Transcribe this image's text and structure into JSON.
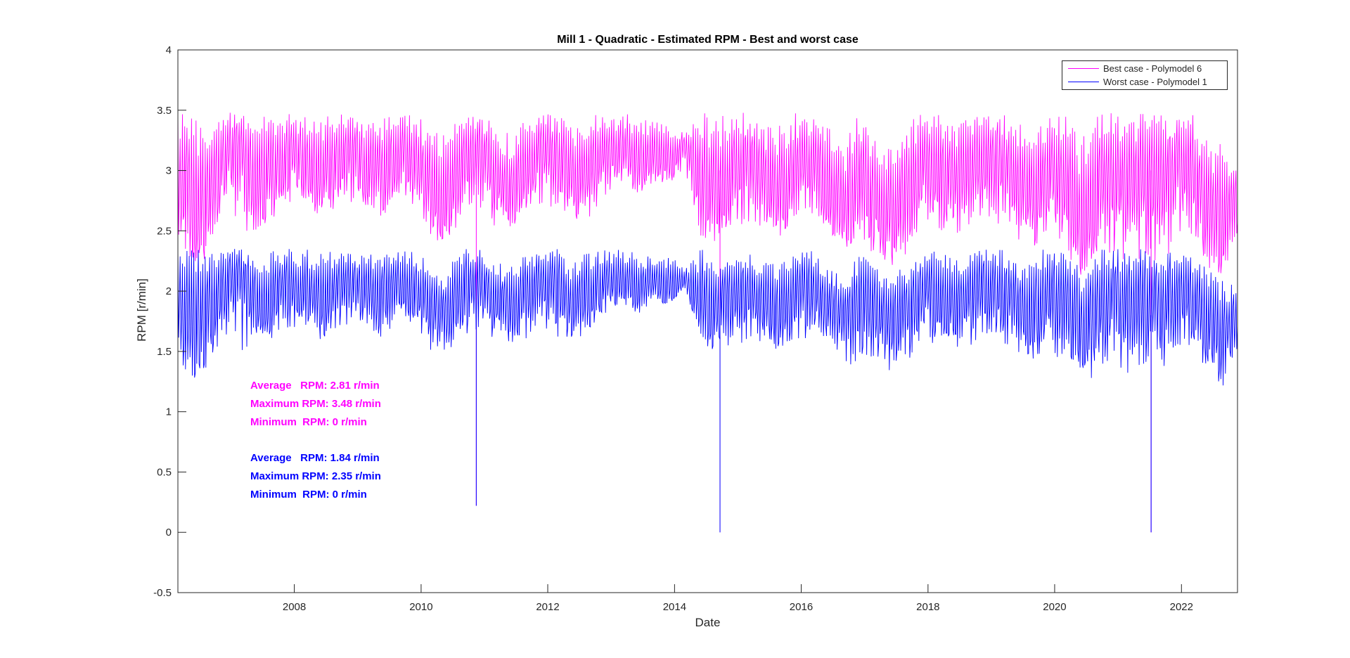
{
  "chart_data": {
    "type": "line",
    "title": "Mill 1 - Quadratic - Estimated RPM - Best and worst case",
    "xlabel": "Date",
    "ylabel": "RPM [r/min]",
    "xlim": [
      "2006-03-01",
      "2022-11-20"
    ],
    "ylim": [
      -0.5,
      4
    ],
    "xticks": [
      "2008",
      "2010",
      "2012",
      "2014",
      "2016",
      "2018",
      "2020",
      "2022"
    ],
    "yticks": [
      "-0.5",
      "0",
      "0.5",
      "1",
      "1.5",
      "2",
      "2.5",
      "3",
      "3.5",
      "4"
    ],
    "grid": false,
    "legend": "top-right",
    "x": [
      "2006-03-01",
      "2006-06-01",
      "2006-09-01",
      "2006-12-01",
      "2007-03-01",
      "2007-06-01",
      "2007-09-01",
      "2007-12-01",
      "2008-03-01",
      "2008-06-01",
      "2008-09-01",
      "2008-12-01",
      "2009-03-01",
      "2009-06-01",
      "2009-09-01",
      "2009-12-01",
      "2010-03-01",
      "2010-06-01",
      "2010-09-01",
      "2010-12-01",
      "2011-03-01",
      "2011-06-01",
      "2011-09-01",
      "2011-12-01",
      "2012-03-01",
      "2012-06-01",
      "2012-09-01",
      "2012-12-01",
      "2013-03-01",
      "2013-06-01",
      "2013-09-01",
      "2013-12-01",
      "2014-03-01",
      "2014-06-01",
      "2014-09-01",
      "2014-12-01",
      "2015-03-01",
      "2015-06-01",
      "2015-09-01",
      "2015-12-01",
      "2016-03-01",
      "2016-06-01",
      "2016-09-01",
      "2016-12-01",
      "2017-03-01",
      "2017-06-01",
      "2017-09-01",
      "2017-12-01",
      "2018-03-01",
      "2018-06-01",
      "2018-09-01",
      "2018-12-01",
      "2019-03-01",
      "2019-06-01",
      "2019-09-01",
      "2019-12-01",
      "2020-03-01",
      "2020-06-01",
      "2020-09-01",
      "2020-12-01",
      "2021-03-01",
      "2021-06-01",
      "2021-09-01",
      "2021-12-01",
      "2022-03-01",
      "2022-06-01",
      "2022-09-01",
      "2022-11-20"
    ],
    "series": [
      {
        "name": "Best case - Polymodel 6",
        "color": "#ff00ff",
        "values": [
          3.0,
          2.5,
          2.6,
          3.1,
          3.2,
          2.7,
          2.9,
          3.1,
          3.0,
          2.8,
          3.0,
          3.1,
          2.9,
          2.9,
          3.1,
          3.0,
          2.7,
          2.6,
          3.0,
          3.1,
          2.9,
          2.7,
          3.0,
          3.1,
          3.0,
          2.8,
          2.9,
          3.1,
          3.1,
          3.0,
          3.1,
          3.0,
          3.2,
          2.8,
          2.7,
          2.9,
          3.0,
          2.8,
          2.7,
          2.9,
          3.0,
          2.8,
          2.6,
          2.8,
          2.7,
          2.5,
          2.7,
          3.0,
          2.9,
          2.8,
          2.9,
          3.1,
          3.0,
          2.8,
          2.6,
          2.9,
          2.8,
          2.4,
          2.7,
          2.9,
          2.8,
          2.9,
          2.8,
          3.0,
          2.9,
          2.5,
          2.4,
          2.7
        ],
        "range_band": [
          [
            2.3,
            3.48
          ],
          [
            2.2,
            3.48
          ],
          [
            2.3,
            3.48
          ],
          [
            2.6,
            3.48
          ],
          [
            2.5,
            3.48
          ],
          [
            2.5,
            3.45
          ],
          [
            2.6,
            3.48
          ],
          [
            2.7,
            3.48
          ],
          [
            2.7,
            3.48
          ],
          [
            2.6,
            3.48
          ],
          [
            2.7,
            3.48
          ],
          [
            2.7,
            3.48
          ],
          [
            2.7,
            3.45
          ],
          [
            2.6,
            3.48
          ],
          [
            2.8,
            3.48
          ],
          [
            2.7,
            3.48
          ],
          [
            2.4,
            3.4
          ],
          [
            2.4,
            3.3
          ],
          [
            2.6,
            3.48
          ],
          [
            2.7,
            3.48
          ],
          [
            2.5,
            3.4
          ],
          [
            2.5,
            3.3
          ],
          [
            2.6,
            3.48
          ],
          [
            2.7,
            3.48
          ],
          [
            2.6,
            3.48
          ],
          [
            2.6,
            3.4
          ],
          [
            2.6,
            3.48
          ],
          [
            2.8,
            3.48
          ],
          [
            2.9,
            3.48
          ],
          [
            2.8,
            3.48
          ],
          [
            2.9,
            3.4
          ],
          [
            2.9,
            3.4
          ],
          [
            3.0,
            3.3
          ],
          [
            2.4,
            3.48
          ],
          [
            2.4,
            3.48
          ],
          [
            2.5,
            3.48
          ],
          [
            2.5,
            3.48
          ],
          [
            2.5,
            3.4
          ],
          [
            2.4,
            3.4
          ],
          [
            2.6,
            3.48
          ],
          [
            2.6,
            3.48
          ],
          [
            2.5,
            3.4
          ],
          [
            2.3,
            3.2
          ],
          [
            2.3,
            3.48
          ],
          [
            2.3,
            3.3
          ],
          [
            2.2,
            3.2
          ],
          [
            2.3,
            3.4
          ],
          [
            2.6,
            3.48
          ],
          [
            2.5,
            3.48
          ],
          [
            2.4,
            3.4
          ],
          [
            2.5,
            3.48
          ],
          [
            2.6,
            3.48
          ],
          [
            2.5,
            3.48
          ],
          [
            2.4,
            3.4
          ],
          [
            2.3,
            3.48
          ],
          [
            2.4,
            3.48
          ],
          [
            2.3,
            3.48
          ],
          [
            2.1,
            3.3
          ],
          [
            2.2,
            3.48
          ],
          [
            2.3,
            3.48
          ],
          [
            2.2,
            3.48
          ],
          [
            2.3,
            3.48
          ],
          [
            2.2,
            3.48
          ],
          [
            2.4,
            3.48
          ],
          [
            2.4,
            3.48
          ],
          [
            2.2,
            3.3
          ],
          [
            2.1,
            3.2
          ],
          [
            2.3,
            3.1
          ]
        ]
      },
      {
        "name": "Worst case - Polymodel 1",
        "color": "#0000ff",
        "values": [
          1.95,
          1.6,
          1.7,
          2.0,
          2.1,
          1.8,
          1.9,
          2.0,
          1.95,
          1.8,
          1.95,
          2.0,
          1.9,
          1.9,
          2.0,
          1.95,
          1.75,
          1.7,
          1.95,
          2.0,
          1.9,
          1.75,
          1.95,
          2.0,
          1.95,
          1.8,
          1.9,
          2.0,
          2.0,
          1.95,
          2.0,
          1.95,
          2.1,
          1.8,
          1.75,
          1.9,
          1.95,
          1.8,
          1.75,
          1.9,
          1.95,
          1.8,
          1.7,
          1.8,
          1.75,
          1.65,
          1.75,
          1.95,
          1.9,
          1.8,
          1.9,
          2.0,
          1.95,
          1.8,
          1.7,
          1.9,
          1.8,
          1.55,
          1.75,
          1.9,
          1.8,
          1.9,
          1.8,
          1.95,
          1.9,
          1.6,
          1.55,
          1.75
        ],
        "range_band": [
          [
            1.4,
            2.35
          ],
          [
            1.1,
            2.35
          ],
          [
            1.4,
            2.35
          ],
          [
            1.6,
            2.35
          ],
          [
            1.5,
            2.35
          ],
          [
            1.6,
            2.3
          ],
          [
            1.6,
            2.35
          ],
          [
            1.7,
            2.35
          ],
          [
            1.7,
            2.35
          ],
          [
            1.6,
            2.35
          ],
          [
            1.7,
            2.35
          ],
          [
            1.7,
            2.35
          ],
          [
            1.7,
            2.3
          ],
          [
            1.6,
            2.35
          ],
          [
            1.8,
            2.35
          ],
          [
            1.7,
            2.35
          ],
          [
            1.5,
            2.25
          ],
          [
            1.5,
            2.2
          ],
          [
            1.6,
            2.35
          ],
          [
            1.7,
            2.35
          ],
          [
            1.55,
            2.25
          ],
          [
            1.55,
            2.2
          ],
          [
            1.6,
            2.35
          ],
          [
            1.7,
            2.35
          ],
          [
            1.6,
            2.35
          ],
          [
            1.6,
            2.25
          ],
          [
            1.6,
            2.35
          ],
          [
            1.8,
            2.35
          ],
          [
            1.9,
            2.35
          ],
          [
            1.8,
            2.35
          ],
          [
            1.9,
            2.3
          ],
          [
            1.9,
            2.3
          ],
          [
            2.0,
            2.2
          ],
          [
            1.5,
            2.35
          ],
          [
            1.5,
            2.35
          ],
          [
            1.55,
            2.35
          ],
          [
            1.55,
            2.35
          ],
          [
            1.55,
            2.25
          ],
          [
            1.5,
            2.25
          ],
          [
            1.6,
            2.35
          ],
          [
            1.6,
            2.35
          ],
          [
            1.55,
            2.25
          ],
          [
            1.35,
            2.1
          ],
          [
            1.4,
            2.35
          ],
          [
            1.4,
            2.2
          ],
          [
            1.3,
            2.1
          ],
          [
            1.4,
            2.25
          ],
          [
            1.6,
            2.35
          ],
          [
            1.55,
            2.35
          ],
          [
            1.5,
            2.25
          ],
          [
            1.55,
            2.35
          ],
          [
            1.6,
            2.35
          ],
          [
            1.55,
            2.35
          ],
          [
            1.5,
            2.25
          ],
          [
            1.4,
            2.35
          ],
          [
            1.5,
            2.35
          ],
          [
            1.4,
            2.35
          ],
          [
            1.2,
            2.2
          ],
          [
            1.3,
            2.35
          ],
          [
            1.4,
            2.35
          ],
          [
            1.3,
            2.35
          ],
          [
            1.4,
            2.35
          ],
          [
            1.3,
            2.35
          ],
          [
            1.5,
            2.35
          ],
          [
            1.5,
            2.35
          ],
          [
            1.3,
            2.2
          ],
          [
            1.2,
            2.1
          ],
          [
            1.4,
            2.1
          ]
        ]
      }
    ],
    "dropouts": [
      {
        "date": "2010-11-15",
        "worst": 0.22,
        "best": 0.22
      },
      {
        "date": "2014-09-20",
        "worst": 0.0,
        "best": 0.0
      },
      {
        "date": "2021-07-10",
        "worst": 0.0,
        "best": 0.0
      }
    ]
  },
  "annotations": {
    "best": {
      "color": "#ff00ff",
      "lines": [
        "Average   RPM: 2.81 r/min",
        "Maximum RPM: 3.48 r/min",
        "Minimum  RPM: 0 r/min"
      ]
    },
    "worst": {
      "color": "#0000ff",
      "lines": [
        "Average   RPM: 1.84 r/min",
        "Maximum RPM: 2.35 r/min",
        "Minimum  RPM: 0 r/min"
      ]
    }
  }
}
